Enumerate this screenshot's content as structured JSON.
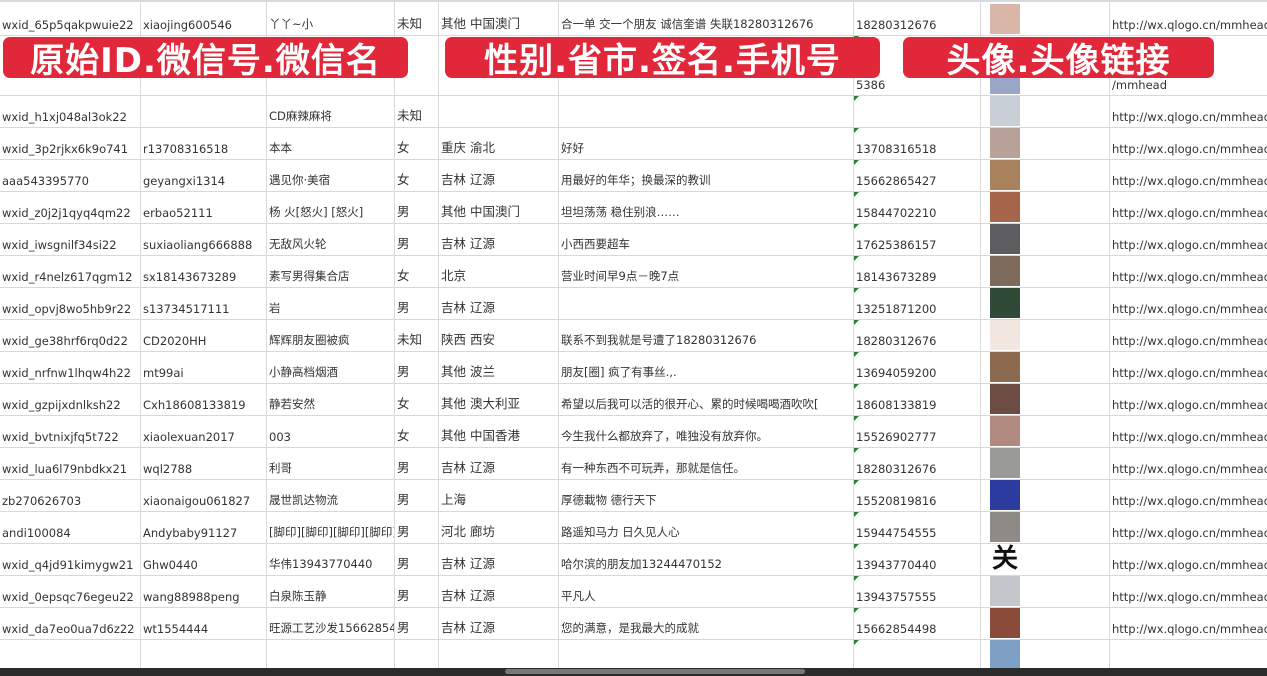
{
  "overlay_labels": [
    "原始ID.微信号.微信名",
    "性别.省市.签名.手机号",
    "头像.头像链接"
  ],
  "brand_color": "#e0283a",
  "rows": [
    {
      "id": "wxid_65p5qakpwuie22",
      "wx": "xiaojing600546",
      "name": "丫丫~小",
      "gender": "未知",
      "region": "其他 中国澳门",
      "sign": "合一单 交一个朋友 诚信奎谱 失联18280312676",
      "phone": "18280312676",
      "avatar": "#d9b7a8",
      "url": "http://wx.qlogo.cn/mmhead"
    },
    {
      "id": "",
      "wx": "",
      "name": "",
      "gender": "",
      "region": "",
      "sign": "",
      "phone": "5386",
      "avatar": "#9aa6c8",
      "url": "/mmhead"
    },
    {
      "id": "wxid_h1xj048al3ok22",
      "wx": "",
      "name": "CD麻辣麻将",
      "gender": "未知",
      "region": "",
      "sign": "",
      "phone": "",
      "avatar": "#c9cfd6",
      "url": "http://wx.qlogo.cn/mmhead"
    },
    {
      "id": "wxid_3p2rjkx6k9o741",
      "wx": "r13708316518",
      "name": "本本",
      "gender": "女",
      "region": "重庆 渝北",
      "sign": "好好",
      "phone": "13708316518",
      "avatar": "#b8a199",
      "url": "http://wx.qlogo.cn/mmhead"
    },
    {
      "id": "aaa543395770",
      "wx": "geyangxi1314",
      "name": "遇见你·美宿",
      "gender": "女",
      "region": "吉林 辽源",
      "sign": "用最好的年华；换最深的教训",
      "phone": "15662865427",
      "avatar": "#a7825d",
      "url": "http://wx.qlogo.cn/mmhead"
    },
    {
      "id": "wxid_z0j2j1qyq4qm22",
      "wx": "erbao52111",
      "name": "杨 火[怒火] [怒火]",
      "gender": "男",
      "region": "其他 中国澳门",
      "sign": "坦坦荡荡 稳住别浪……",
      "phone": "15844702210",
      "avatar": "#a6644a",
      "url": "http://wx.qlogo.cn/mmhead"
    },
    {
      "id": "wxid_iwsgnilf34si22",
      "wx": "suxiaoliang666888",
      "name": "无敌风火轮",
      "gender": "男",
      "region": "吉林 辽源",
      "sign": "小西西要超车",
      "phone": "17625386157",
      "avatar": "#5d5c5f",
      "url": "http://wx.qlogo.cn/mmhead"
    },
    {
      "id": "wxid_r4nelz617qgm12",
      "wx": "sx18143673289",
      "name": "素写男得集合店",
      "gender": "女",
      "region": "北京",
      "sign": "营业时间早9点－晚7点",
      "phone": "18143673289",
      "avatar": "#7d6a5a",
      "url": "http://wx.qlogo.cn/mmhead"
    },
    {
      "id": "wxid_opvj8wo5hb9r22",
      "wx": "s13734517111",
      "name": "岩",
      "gender": "男",
      "region": "吉林 辽源",
      "sign": "",
      "phone": "13251871200",
      "avatar": "#2f4a36",
      "url": "http://wx.qlogo.cn/mmhead"
    },
    {
      "id": "wxid_ge38hrf6rq0d22",
      "wx": "CD2020HH",
      "name": "辉辉朋友圈被疯",
      "gender": "未知",
      "region": "陕西 西安",
      "sign": "联系不到我就是号遭了18280312676",
      "phone": "18280312676",
      "avatar": "#f2e6e0",
      "url": "http://wx.qlogo.cn/mmhead"
    },
    {
      "id": "wxid_nrfnw1lhqw4h22",
      "wx": "mt99ai",
      "name": "小静高档烟酒",
      "gender": "男",
      "region": "其他 波兰",
      "sign": "朋友[圈] 疯了有事丝.,.",
      "phone": "13694059200",
      "avatar": "#8b6a4f",
      "url": "http://wx.qlogo.cn/mmhead"
    },
    {
      "id": "wxid_gzpijxdnlksh22",
      "wx": "Cxh18608133819",
      "name": "静若安然",
      "gender": "女",
      "region": "其他 澳大利亚",
      "sign": "希望以后我可以活的很开心、累的时候喝喝酒吹吹[",
      "phone": "18608133819",
      "avatar": "#6d4d43",
      "url": "http://wx.qlogo.cn/mmhead"
    },
    {
      "id": "wxid_bvtnixjfq5t722",
      "wx": "xiaolexuan2017",
      "name": "003",
      "gender": "女",
      "region": "其他 中国香港",
      "sign": "今生我什么都放弃了，唯独没有放弃你。",
      "phone": "15526902777",
      "avatar": "#b08a7e",
      "url": "http://wx.qlogo.cn/mmhead"
    },
    {
      "id": "wxid_lua6l79nbdkx21",
      "wx": "wql2788",
      "name": "利哥",
      "gender": "男",
      "region": "吉林 辽源",
      "sign": "有一种东西不可玩弄，那就是信任。",
      "phone": "18280312676",
      "avatar": "#9a9a96",
      "url": "http://wx.qlogo.cn/mmhead"
    },
    {
      "id": "zb270626703",
      "wx": "xiaonaigou061827",
      "name": "晟世凯达物流",
      "gender": "男",
      "region": "上海",
      "sign": "厚德載物 德行天下",
      "phone": "15520819816",
      "avatar": "#2b3c9e",
      "url": "http://wx.qlogo.cn/mmhead"
    },
    {
      "id": "andi100084",
      "wx": "Andybaby91127",
      "name": "[脚印][脚印][脚印][脚印]",
      "gender": "男",
      "region": "河北 廊坊",
      "sign": "路遥知马力 日久见人心",
      "phone": "15944754555",
      "avatar": "#8e8a86",
      "url": "http://wx.qlogo.cn/mmhead"
    },
    {
      "id": "wxid_q4jd91kimygw21",
      "wx": "Ghw0440",
      "name": "华伟13943770440",
      "gender": "男",
      "region": "吉林 辽源",
      "sign": "哈尔滨的朋友加13244470152",
      "phone": "13943770440",
      "avatar": "#ffffff",
      "avatar_glyph": "关",
      "url": "http://wx.qlogo.cn/mmhead"
    },
    {
      "id": "wxid_0epsqc76egeu22",
      "wx": "wang88988peng",
      "name": "白泉陈玉静",
      "gender": "男",
      "region": "吉林 辽源",
      "sign": "平凡人",
      "phone": "13943757555",
      "avatar": "#c3c7cc",
      "url": "http://wx.qlogo.cn/mmhead"
    },
    {
      "id": "wxid_da7eo0ua7d6z22",
      "wx": "wt1554444",
      "name": "旺源工艺沙发15662854",
      "gender": "男",
      "region": "吉林 辽源",
      "sign": "您的满意，是我最大的成就",
      "phone": "15662854498",
      "avatar": "#8a4b3a",
      "url": "http://wx.qlogo.cn/mmhead"
    },
    {
      "id": "",
      "wx": "",
      "name": "",
      "gender": "",
      "region": "",
      "sign": "",
      "phone": "",
      "avatar": "#7da0c4",
      "url": ""
    }
  ]
}
